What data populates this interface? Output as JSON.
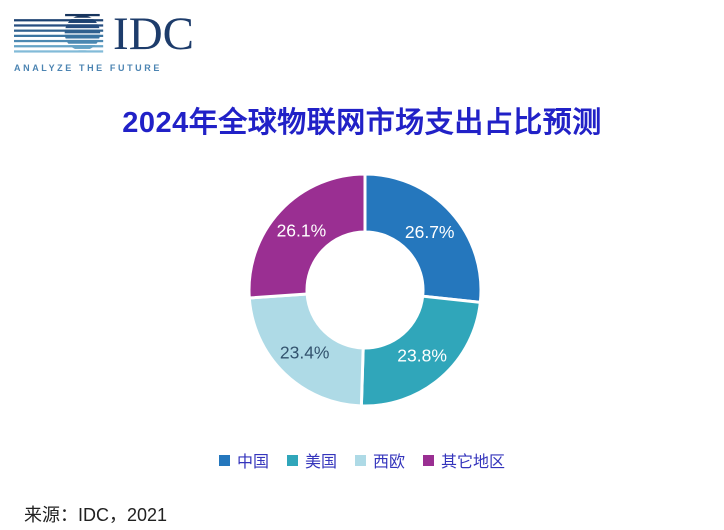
{
  "logo": {
    "text": "IDC",
    "tagline": "ANALYZE THE FUTURE"
  },
  "title": "2024年全球物联网市场支出占比预测",
  "chart_data": {
    "type": "pie",
    "subtype": "donut",
    "title": "2024年全球物联网市场支出占比预测",
    "categories": [
      "中国",
      "美国",
      "西欧",
      "其它地区"
    ],
    "values": [
      26.7,
      23.8,
      23.4,
      26.1
    ],
    "labels": [
      "26.7%",
      "23.8%",
      "23.4%",
      "26.1%"
    ],
    "colors": [
      "#2577BD",
      "#30A6BA",
      "#AEDAE6",
      "#9A2F92"
    ],
    "label_colors": [
      "#FFFFFF",
      "#FFFFFF",
      "#33536E",
      "#FFFFFF"
    ],
    "start_angle_deg": 0,
    "direction": "clockwise",
    "inner_radius_ratio": 0.5,
    "gap_color": "#FFFFFF",
    "legend_position": "bottom"
  },
  "legend": {
    "items": [
      {
        "label": "中国",
        "color": "#2577BD"
      },
      {
        "label": "美国",
        "color": "#30A6BA"
      },
      {
        "label": "西欧",
        "color": "#AEDAE6"
      },
      {
        "label": "其它地区",
        "color": "#9A2F92"
      }
    ]
  },
  "source": "来源：IDC，2021",
  "colors": {
    "title_text": "#2121C7",
    "legend_text": "#3434BC",
    "source_text": "#212121",
    "logo_text": "#1D3C6B",
    "logo_tagline": "#4C84B2",
    "background": "#FFFFFF"
  }
}
